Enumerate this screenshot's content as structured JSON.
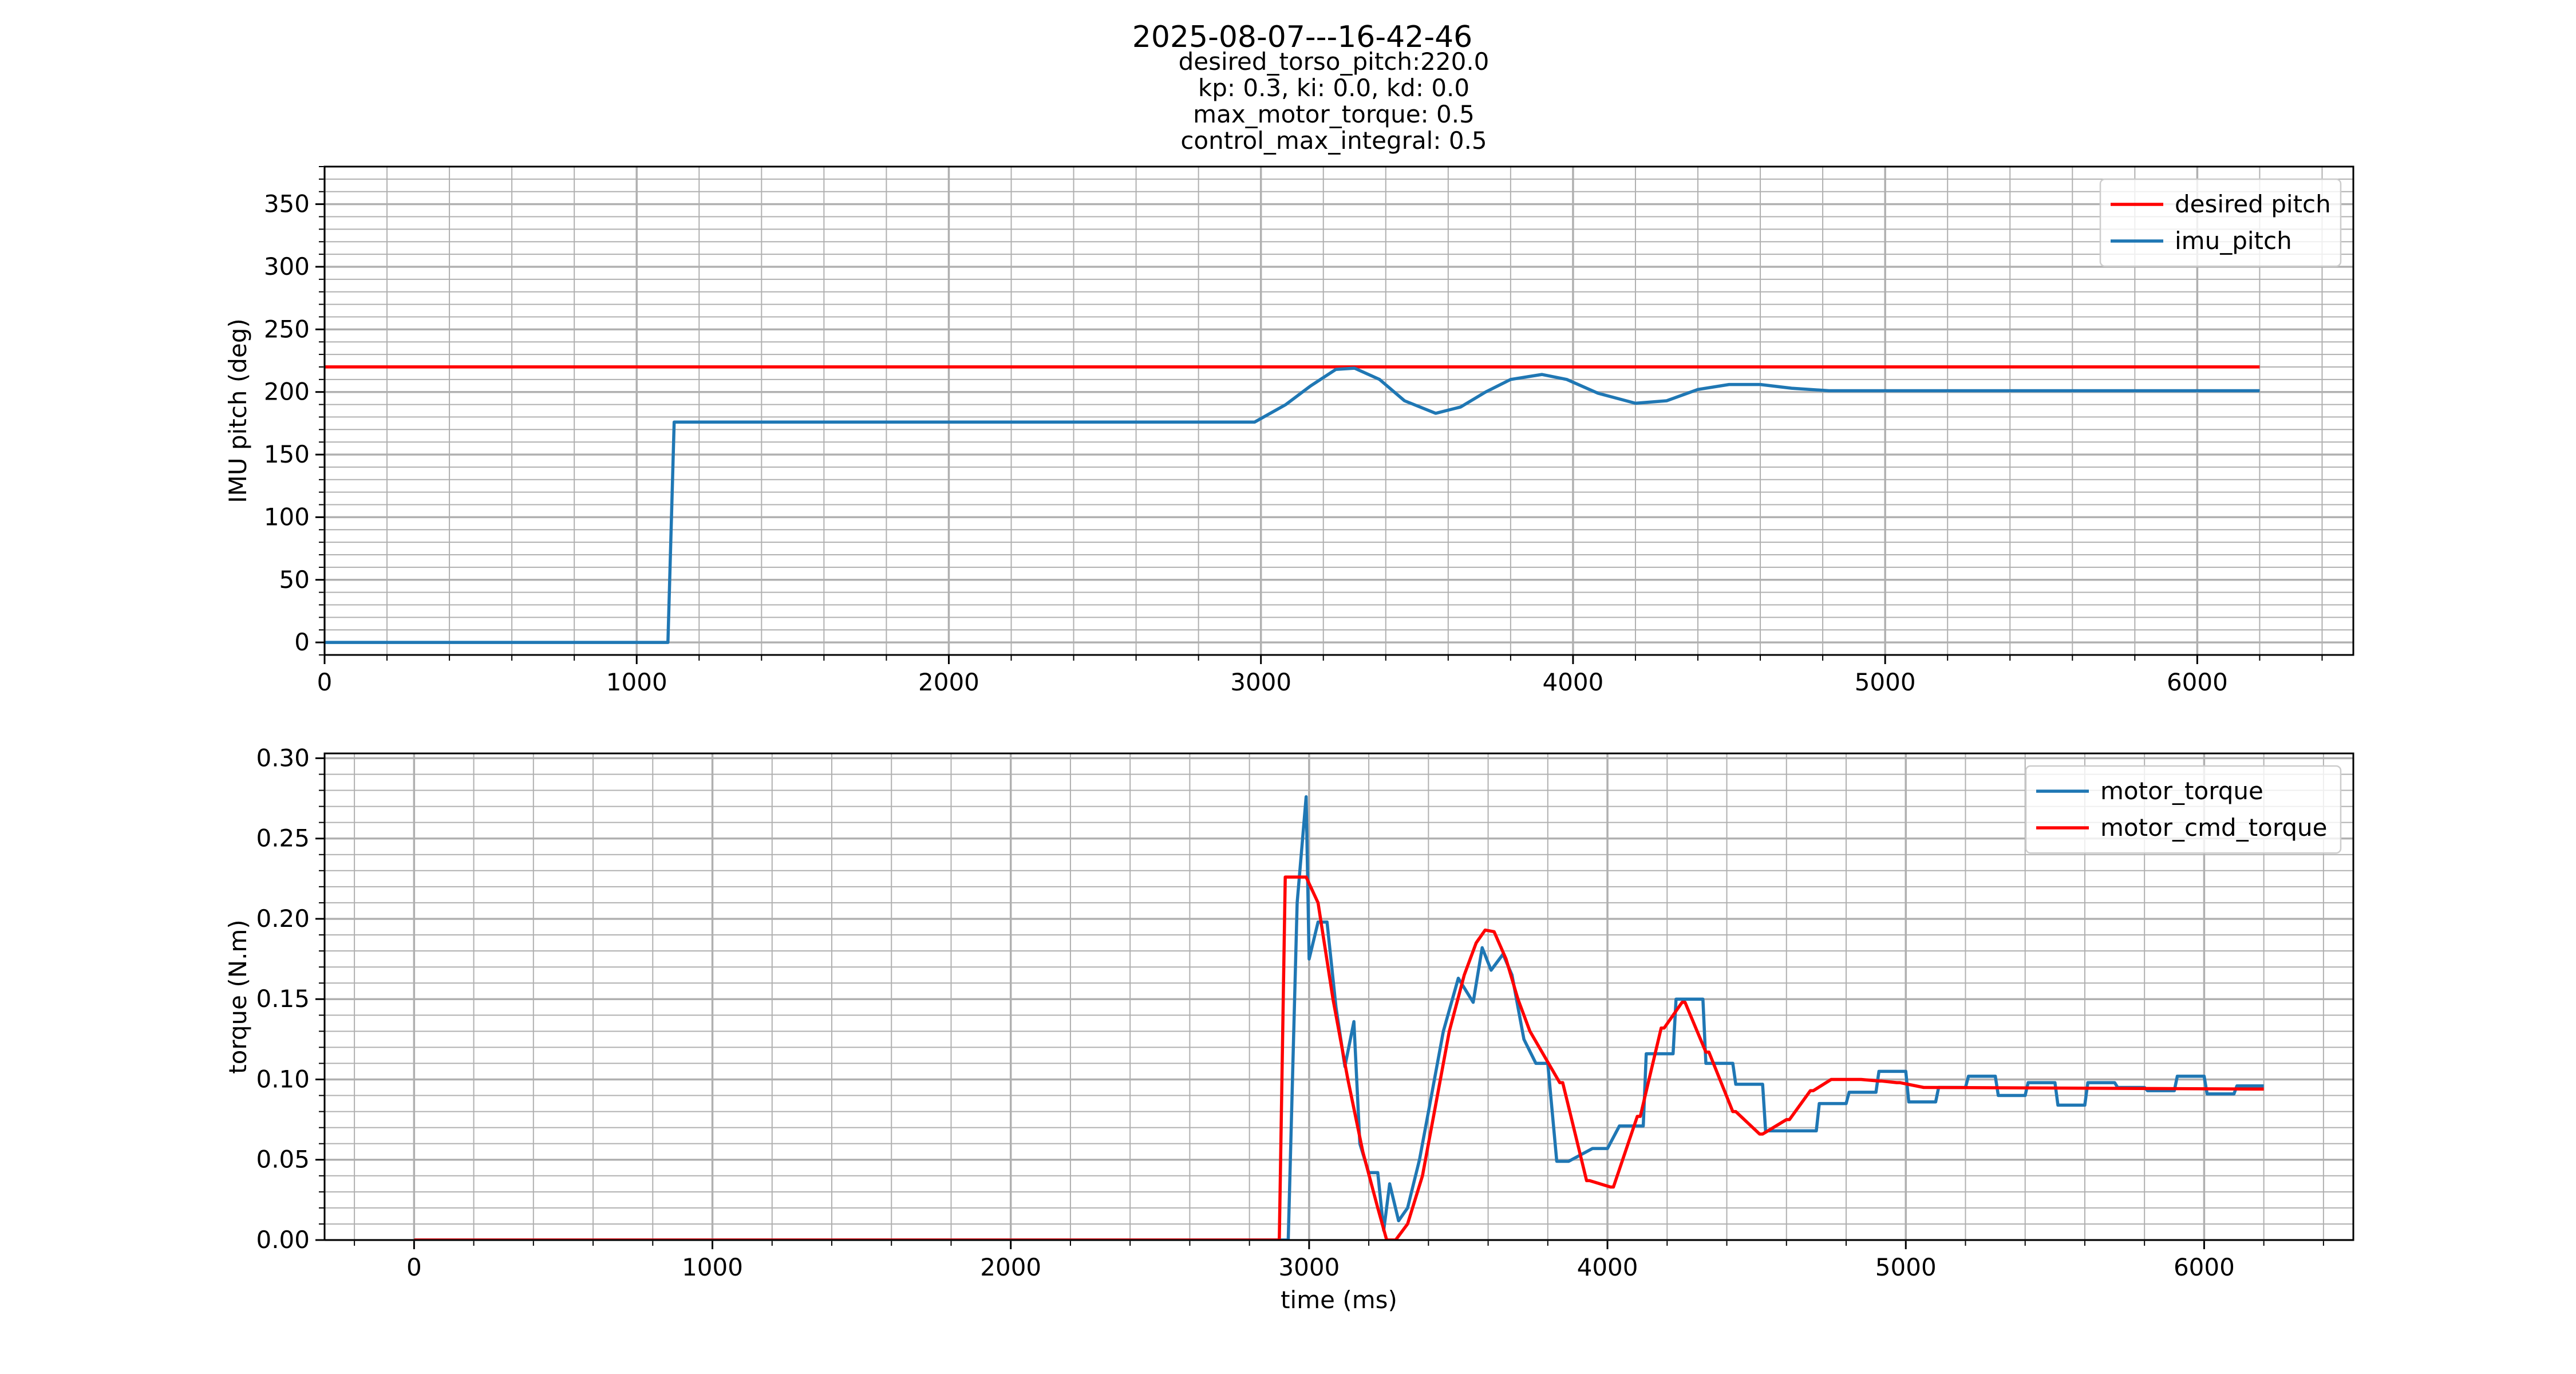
{
  "figure": {
    "title": "2025-08-07---16-42-46",
    "subtitle_lines": [
      "desired_torso_pitch:220.0",
      "kp: 0.3, ki: 0.0, kd: 0.0",
      "max_motor_torque: 0.5",
      "control_max_integral: 0.5"
    ]
  },
  "colors": {
    "blue": "#1f77b4",
    "red": "#ff0000",
    "grid": "#b0b0b0"
  },
  "chart_data": [
    {
      "type": "line",
      "title": "",
      "xlabel": "",
      "ylabel": "IMU pitch (deg)",
      "xlim": [
        0,
        6500
      ],
      "ylim": [
        -10,
        380
      ],
      "xticks": [
        0,
        1000,
        2000,
        3000,
        4000,
        5000,
        6000
      ],
      "yticks": [
        0,
        50,
        100,
        150,
        200,
        250,
        300,
        350
      ],
      "xminor_step": 200,
      "yminor_step": 10,
      "grid": true,
      "legend": "top-right",
      "series": [
        {
          "name": "desired pitch",
          "color": "#ff0000",
          "x": [
            0,
            6200
          ],
          "y": [
            220,
            220
          ]
        },
        {
          "name": "imu_pitch",
          "color": "#1f77b4",
          "x": [
            0,
            1100,
            1120,
            2980,
            3080,
            3160,
            3240,
            3300,
            3380,
            3460,
            3560,
            3640,
            3720,
            3800,
            3900,
            3980,
            4080,
            4200,
            4300,
            4400,
            4500,
            4600,
            4700,
            4820,
            5000,
            6200
          ],
          "y": [
            0,
            0,
            176,
            176,
            190,
            205,
            218,
            219,
            210,
            193,
            183,
            188,
            200,
            210,
            214,
            210,
            199,
            191,
            193,
            202,
            206,
            206,
            203,
            201,
            201,
            201
          ]
        }
      ]
    },
    {
      "type": "line",
      "title": "",
      "xlabel": "time (ms)",
      "ylabel": "torque (N.m)",
      "xlim": [
        -300,
        6500
      ],
      "ylim": [
        0,
        0.303
      ],
      "xticks": [
        0,
        1000,
        2000,
        3000,
        4000,
        5000,
        6000
      ],
      "yticks": [
        0.0,
        0.05,
        0.1,
        0.15,
        0.2,
        0.25,
        0.3
      ],
      "ytick_labels": [
        "0.00",
        "0.05",
        "0.10",
        "0.15",
        "0.20",
        "0.25",
        "0.30"
      ],
      "xminor_step": 200,
      "yminor_step": 0.01,
      "grid": true,
      "legend": "top-right",
      "series": [
        {
          "name": "motor_torque",
          "color": "#1f77b4",
          "x": [
            0,
            2930,
            2960,
            2990,
            3000,
            3030,
            3060,
            3090,
            3120,
            3150,
            3170,
            3200,
            3230,
            3250,
            3270,
            3300,
            3330,
            3370,
            3400,
            3450,
            3500,
            3550,
            3580,
            3610,
            3650,
            3680,
            3720,
            3760,
            3800,
            3830,
            3870,
            3950,
            4000,
            4040,
            4120,
            4130,
            4220,
            4230,
            4320,
            4330,
            4420,
            4430,
            4520,
            4530,
            4700,
            4710,
            4800,
            4810,
            4900,
            4910,
            5000,
            5010,
            5100,
            5110,
            5200,
            5210,
            5300,
            5310,
            5400,
            5410,
            5500,
            5510,
            5600,
            5610,
            5700,
            5710,
            5800,
            5810,
            5900,
            5910,
            6000,
            6010,
            6100,
            6110,
            6200
          ],
          "y": [
            0,
            0,
            0.21,
            0.276,
            0.175,
            0.198,
            0.198,
            0.145,
            0.108,
            0.136,
            0.06,
            0.042,
            0.042,
            0.006,
            0.035,
            0.012,
            0.02,
            0.05,
            0.08,
            0.13,
            0.163,
            0.148,
            0.182,
            0.168,
            0.178,
            0.165,
            0.125,
            0.11,
            0.11,
            0.049,
            0.049,
            0.057,
            0.057,
            0.071,
            0.071,
            0.116,
            0.116,
            0.15,
            0.15,
            0.11,
            0.11,
            0.097,
            0.097,
            0.068,
            0.068,
            0.085,
            0.085,
            0.092,
            0.092,
            0.105,
            0.105,
            0.086,
            0.086,
            0.095,
            0.095,
            0.102,
            0.102,
            0.09,
            0.09,
            0.098,
            0.098,
            0.084,
            0.084,
            0.098,
            0.098,
            0.095,
            0.095,
            0.093,
            0.093,
            0.102,
            0.102,
            0.091,
            0.091,
            0.096,
            0.096
          ]
        },
        {
          "name": "motor_cmd_torque",
          "color": "#ff0000",
          "x": [
            0,
            2900,
            2920,
            2990,
            3030,
            3080,
            3130,
            3180,
            3230,
            3260,
            3290,
            3330,
            3380,
            3420,
            3470,
            3520,
            3560,
            3590,
            3620,
            3660,
            3700,
            3740,
            3840,
            3850,
            3930,
            3940,
            4010,
            4020,
            4100,
            4110,
            4180,
            4190,
            4250,
            4260,
            4330,
            4340,
            4420,
            4430,
            4510,
            4520,
            4600,
            4610,
            4680,
            4690,
            4750,
            4760,
            4840,
            4850,
            4910,
            4920,
            4970,
            4980,
            5060,
            5070,
            6200
          ],
          "y": [
            0,
            0,
            0.226,
            0.226,
            0.21,
            0.15,
            0.1,
            0.055,
            0.02,
            0,
            0,
            0.01,
            0.04,
            0.08,
            0.13,
            0.165,
            0.185,
            0.193,
            0.192,
            0.175,
            0.15,
            0.13,
            0.098,
            0.098,
            0.037,
            0.037,
            0.033,
            0.033,
            0.077,
            0.077,
            0.132,
            0.132,
            0.148,
            0.148,
            0.117,
            0.117,
            0.08,
            0.08,
            0.066,
            0.066,
            0.075,
            0.075,
            0.093,
            0.093,
            0.1,
            0.1,
            0.1,
            0.1,
            0.099,
            0.099,
            0.098,
            0.098,
            0.095,
            0.095,
            0.094
          ]
        }
      ]
    }
  ]
}
